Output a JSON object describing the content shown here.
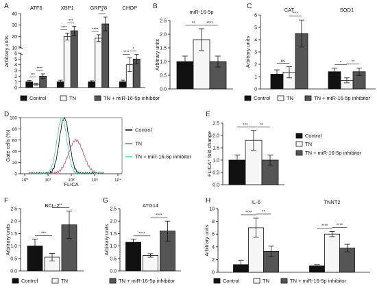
{
  "colors": {
    "black": "#111111",
    "white": "#f7f7f7",
    "grey": "#555555",
    "line_black": "#000000",
    "line_red": "#c8506a",
    "line_green": "#48c49a"
  },
  "legend_labels": [
    "Control",
    "TN",
    "TN + miR-16-5p inhibitor"
  ],
  "chart_data": [
    {
      "panel": "A",
      "type": "bar",
      "ylabel": "Arbitrary units",
      "categories": [
        "ATF6",
        "XBP1",
        "GRP78",
        "CHOP"
      ],
      "series": [
        {
          "name": "Control",
          "values": [
            1,
            1,
            1,
            1
          ]
        },
        {
          "name": "TN",
          "values": [
            0.6,
            20,
            18.5,
            4
          ]
        },
        {
          "name": "TN + miR-16-5p inhibitor",
          "values": [
            2,
            25,
            31,
            5
          ]
        }
      ],
      "errors": [
        [
          0.25,
          0.3,
          0.2,
          0.3
        ],
        [
          0.15,
          3,
          3,
          1.2
        ],
        [
          0.4,
          4,
          6,
          0.8
        ]
      ],
      "ticks_lower": [
        "0",
        "1",
        "2",
        "3",
        "4",
        "5",
        "6"
      ],
      "ticks_upper": [
        "10",
        "20",
        "30",
        "40"
      ],
      "axis_break": true,
      "significance": [
        [
          "***",
          "****"
        ],
        [
          "****",
          "***"
        ],
        [
          "****",
          "**"
        ],
        [
          "****",
          "*"
        ]
      ]
    },
    {
      "panel": "B",
      "type": "bar",
      "title": "miR-16-5p",
      "ylabel": "Arbitrary units",
      "categories": [
        ""
      ],
      "ylim": [
        0,
        2.5
      ],
      "series": [
        {
          "name": "Control",
          "values": [
            1.0
          ]
        },
        {
          "name": "TN",
          "values": [
            1.8
          ]
        },
        {
          "name": "TN + miR-16-5p inhibitor",
          "values": [
            1.0
          ]
        }
      ],
      "errors": [
        [
          0.2
        ],
        [
          0.4
        ],
        [
          0.2
        ]
      ],
      "ticks": [
        "0.0",
        "0.5",
        "1.0",
        "1.5",
        "2.0",
        "2.5"
      ],
      "significance": [
        "**",
        "****"
      ]
    },
    {
      "panel": "C",
      "type": "bar",
      "ylabel": "Arbitrary units",
      "categories": [
        "CAT",
        "SOD1"
      ],
      "ylim": [
        0,
        6
      ],
      "series": [
        {
          "name": "Control",
          "values": [
            1.2,
            1.4
          ]
        },
        {
          "name": "TN",
          "values": [
            1.35,
            0.7
          ]
        },
        {
          "name": "TN + miR-16-5p inhibitor",
          "values": [
            4.5,
            1.4
          ]
        }
      ],
      "errors": [
        [
          0.35,
          0.3
        ],
        [
          0.45,
          0.2
        ],
        [
          1.1,
          0.3
        ]
      ],
      "ticks": [
        "0",
        "1",
        "2",
        "3",
        "4",
        "5",
        "6"
      ],
      "significance": [
        [
          "ns",
          "***"
        ],
        [
          "*",
          "**"
        ]
      ]
    },
    {
      "panel": "D",
      "type": "line",
      "ylabel": "Gate cells (%)",
      "xlabel": "FLICA",
      "xticks": [
        "10⁰",
        "10¹",
        "10²",
        "10³",
        "10⁴"
      ],
      "yticks": [
        "0",
        "20",
        "40",
        "60",
        "80",
        "100"
      ],
      "series": [
        {
          "name": "Control",
          "peak_log10": 1.7,
          "peak_pct": 100
        },
        {
          "name": "TN",
          "peak_log10": 2.2,
          "peak_pct": 60
        },
        {
          "name": "TN + miR-16-5p inhibitor",
          "peak_log10": 1.6,
          "peak_pct": 100
        }
      ]
    },
    {
      "panel": "E",
      "type": "bar",
      "ylabel": "FLICA⁺ fold change",
      "categories": [
        ""
      ],
      "ylim": [
        0,
        2.5
      ],
      "series": [
        {
          "name": "Control",
          "values": [
            1.0
          ]
        },
        {
          "name": "TN",
          "values": [
            1.8
          ]
        },
        {
          "name": "TN + miR-16-5p inhibitor",
          "values": [
            1.0
          ]
        }
      ],
      "errors": [
        [
          0.2
        ],
        [
          0.4
        ],
        [
          0.2
        ]
      ],
      "ticks": [
        "0.0",
        "0.5",
        "1.0",
        "1.5",
        "2.0",
        "2.5"
      ],
      "significance": [
        "***",
        "**"
      ]
    },
    {
      "panel": "F",
      "type": "bar",
      "title": "BCL-2",
      "ylabel": "Arbitrary units",
      "categories": [
        ""
      ],
      "ylim": [
        0,
        2.5
      ],
      "series": [
        {
          "name": "Control",
          "values": [
            1.0
          ]
        },
        {
          "name": "TN",
          "values": [
            0.55
          ]
        },
        {
          "name": "TN + miR-16-5p inhibitor",
          "values": [
            1.85
          ]
        }
      ],
      "errors": [
        [
          0.28
        ],
        [
          0.15
        ],
        [
          0.55
        ]
      ],
      "ticks": [
        "0.0",
        "0.5",
        "1.0",
        "1.5",
        "2.0",
        "2.5"
      ],
      "significance": [
        "***",
        "**"
      ]
    },
    {
      "panel": "G",
      "type": "bar",
      "title": "ATG14",
      "ylabel": "Arbitrary units",
      "categories": [
        ""
      ],
      "ylim": [
        0,
        2.5
      ],
      "series": [
        {
          "name": "Control",
          "values": [
            1.15
          ]
        },
        {
          "name": "TN",
          "values": [
            0.62
          ]
        },
        {
          "name": "TN + miR-16-5p inhibitor",
          "values": [
            1.6
          ]
        }
      ],
      "errors": [
        [
          0.12
        ],
        [
          0.07
        ],
        [
          0.4
        ]
      ],
      "ticks": [
        "0.0",
        "0.5",
        "1.0",
        "1.5",
        "2.0",
        "2.5"
      ],
      "significance": [
        "****",
        "****"
      ]
    },
    {
      "panel": "H",
      "type": "bar",
      "ylabel": "Arbitrary units",
      "categories": [
        "IL-6",
        "TNNT2"
      ],
      "ylim": [
        0,
        10
      ],
      "series": [
        {
          "name": "Control",
          "values": [
            1.2,
            1.0
          ]
        },
        {
          "name": "TN",
          "values": [
            7.0,
            6.0
          ]
        },
        {
          "name": "TN + miR-16-5p inhibitor",
          "values": [
            3.3,
            3.8
          ]
        }
      ],
      "errors": [
        [
          0.7,
          0.2
        ],
        [
          1.5,
          0.4
        ],
        [
          0.8,
          0.6
        ]
      ],
      "ticks": [
        "0",
        "2",
        "4",
        "6",
        "8",
        "10"
      ],
      "significance": [
        [
          "****",
          "**"
        ],
        [
          "****",
          "****"
        ]
      ]
    }
  ]
}
